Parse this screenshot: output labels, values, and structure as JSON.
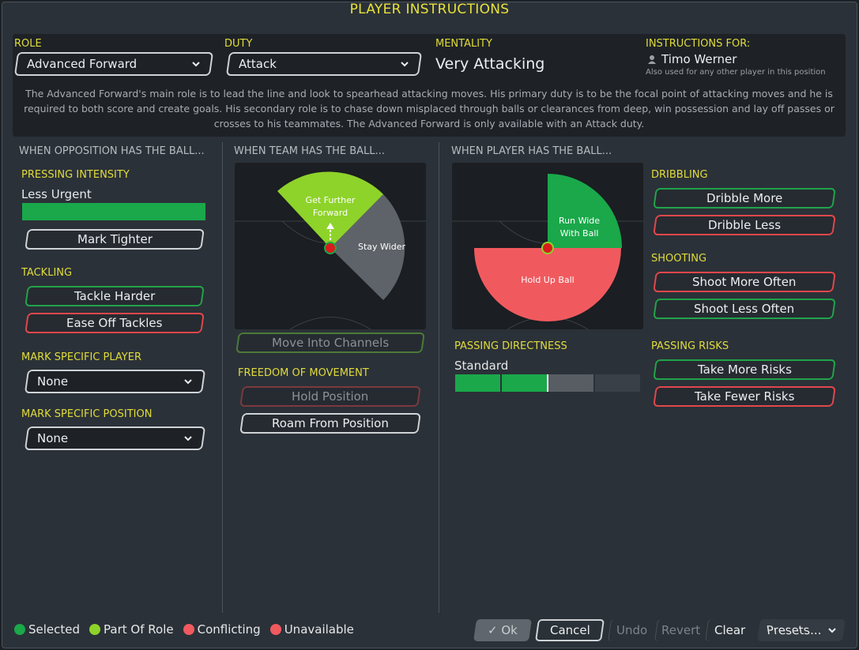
{
  "window": {
    "title": "PLAYER INSTRUCTIONS"
  },
  "header": {
    "role_label": "ROLE",
    "role_value": "Advanced Forward",
    "duty_label": "DUTY",
    "duty_value": "Attack",
    "mentality_label": "MENTALITY",
    "mentality_value": "Very Attacking",
    "instructions_for_label": "INSTRUCTIONS FOR:",
    "player_name": "Timo Werner",
    "also_used": "Also used for any other player in this position",
    "description": "The Advanced Forward's main role is to lead the line and look to spearhead attacking moves. His primary duty is to be the focal point of attacking moves and he is required to both score and create goals. His secondary role is to chase down misplaced through balls or clearances from deep, win possession and lay off passes or crosses to his teammates. The Advanced Forward is only available with an Attack duty."
  },
  "opposition": {
    "heading": "WHEN OPPOSITION HAS THE BALL...",
    "pressing_label": "PRESSING INTENSITY",
    "pressing_value": "Less Urgent",
    "pressing_level": 1.0,
    "mark_tighter": "Mark Tighter",
    "tackling_label": "TACKLING",
    "tackle_harder": "Tackle Harder",
    "ease_off": "Ease Off Tackles",
    "mark_player_label": "MARK SPECIFIC PLAYER",
    "mark_player_value": "None",
    "mark_position_label": "MARK SPECIFIC POSITION",
    "mark_position_value": "None"
  },
  "team": {
    "heading": "WHEN TEAM HAS THE BALL...",
    "get_further_forward": "Get Further Forward",
    "stay_wider": "Stay Wider",
    "move_into_channels": "Move Into Channels",
    "freedom_label": "FREEDOM OF MOVEMENT",
    "hold_position": "Hold Position",
    "roam": "Roam From Position"
  },
  "player": {
    "heading": "WHEN PLAYER HAS THE BALL...",
    "run_wide": "Run Wide With Ball",
    "hold_up": "Hold Up Ball",
    "passing_directness_label": "PASSING DIRECTNESS",
    "passing_directness_value": "Standard",
    "passing_directness_level": 0.5,
    "dribbling_label": "DRIBBLING",
    "dribble_more": "Dribble More",
    "dribble_less": "Dribble Less",
    "shooting_label": "SHOOTING",
    "shoot_more": "Shoot More Often",
    "shoot_less": "Shoot Less Often",
    "passing_risks_label": "PASSING RISKS",
    "more_risks": "Take More Risks",
    "fewer_risks": "Take Fewer Risks"
  },
  "legend": {
    "selected": "Selected",
    "part_of_role": "Part Of Role",
    "conflicting": "Conflicting",
    "unavailable": "Unavailable"
  },
  "footer": {
    "ok": "Ok",
    "cancel": "Cancel",
    "undo": "Undo",
    "revert": "Revert",
    "clear": "Clear",
    "presets": "Presets..."
  },
  "colors": {
    "selected": "#1aa84a",
    "part_of_role": "#8ed32a",
    "conflicting": "#f05a5f",
    "unavailable": "#f05a5f",
    "accent_yellow": "#e0dc3a"
  }
}
